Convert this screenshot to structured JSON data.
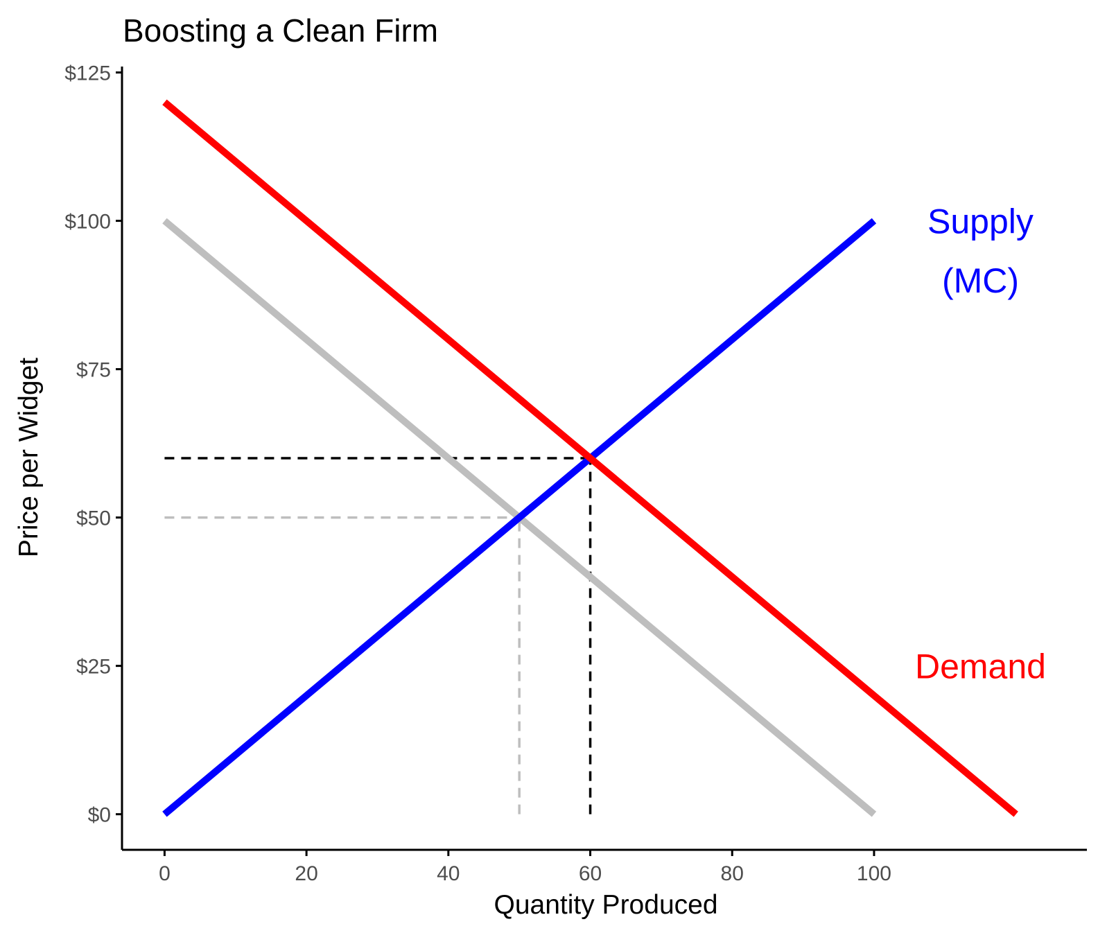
{
  "chart_data": {
    "type": "line",
    "title": "Boosting a Clean Firm",
    "xlabel": "Quantity Produced",
    "ylabel": "Price per Widget",
    "xlim": [
      -6,
      130
    ],
    "ylim": [
      -6,
      126
    ],
    "x_ticks": [
      0,
      20,
      40,
      60,
      80,
      100
    ],
    "y_ticks": [
      0,
      25,
      50,
      75,
      100,
      125
    ],
    "y_tick_labels": [
      "$0",
      "$25",
      "$50",
      "$75",
      "$100",
      "$125"
    ],
    "grid": false,
    "series": [
      {
        "key": "supply",
        "color": "#0000ff",
        "x": [
          0,
          100
        ],
        "y": [
          0,
          100
        ]
      },
      {
        "key": "demand",
        "color": "#ff0000",
        "x": [
          0,
          120
        ],
        "y": [
          120,
          0
        ]
      },
      {
        "key": "original_demand",
        "color": "#bebebe",
        "x": [
          0,
          100
        ],
        "y": [
          100,
          0
        ]
      }
    ],
    "guides": [
      {
        "key": "new_eq_horizontal",
        "color": "#000000",
        "x": [
          0,
          60
        ],
        "y": [
          60,
          60
        ]
      },
      {
        "key": "new_eq_vertical",
        "color": "#000000",
        "x": [
          60,
          60
        ],
        "y": [
          0,
          60
        ]
      },
      {
        "key": "old_eq_horizontal",
        "color": "#bebebe",
        "x": [
          0,
          50
        ],
        "y": [
          50,
          50
        ]
      },
      {
        "key": "old_eq_vertical",
        "color": "#bebebe",
        "x": [
          50,
          50
        ],
        "y": [
          0,
          50
        ]
      }
    ],
    "annotations": [
      {
        "key": "supply_line1",
        "text": "Supply",
        "x": 115,
        "y": 100,
        "color": "#0000ff"
      },
      {
        "key": "supply_line2",
        "text": "(MC)",
        "x": 115,
        "y": 90,
        "color": "#0000ff"
      },
      {
        "key": "demand_label",
        "text": "Demand",
        "x": 115,
        "y": 25,
        "color": "#ff0000"
      }
    ]
  }
}
